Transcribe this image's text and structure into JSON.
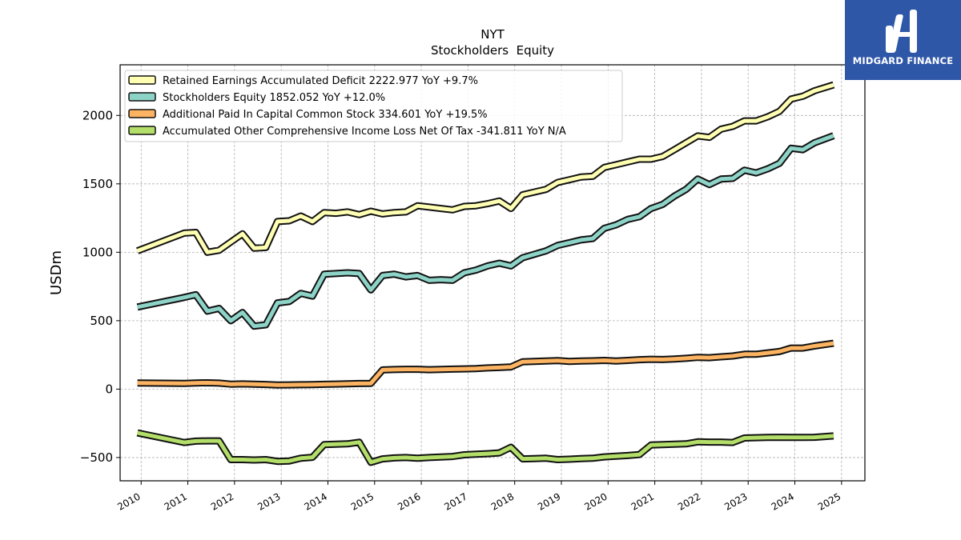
{
  "brand": {
    "name": "MIDGARD FINANCE",
    "bg_color": "#2f57a8"
  },
  "chart_data": {
    "type": "line",
    "title": "NYT",
    "subtitle": "Stockholders  Equity",
    "xlabel": "",
    "ylabel": "USDm",
    "xlim": [
      2009.55,
      2025.5
    ],
    "ylim": [
      -670,
      2370
    ],
    "x_ticks": [
      "2010",
      "2011",
      "2012",
      "2013",
      "2014",
      "2015",
      "2016",
      "2017",
      "2018",
      "2019",
      "2020",
      "2021",
      "2022",
      "2023",
      "2024",
      "2025"
    ],
    "y_ticks": [
      -500,
      0,
      500,
      1000,
      1500,
      2000
    ],
    "grid": true,
    "legend_position": "top-left",
    "series": [
      {
        "name": "Retained Earnings Accumulated Deficit",
        "legend": "Retained Earnings Accumulated Deficit  2222.977 YoY +9.7%",
        "color": "#ffffb3",
        "points": [
          [
            2009.92,
            1010
          ],
          [
            2010.92,
            1140
          ],
          [
            2011.17,
            1145
          ],
          [
            2011.42,
            1000
          ],
          [
            2011.67,
            1015
          ],
          [
            2011.92,
            1075
          ],
          [
            2012.17,
            1135
          ],
          [
            2012.42,
            1030
          ],
          [
            2012.67,
            1035
          ],
          [
            2012.92,
            1225
          ],
          [
            2013.17,
            1230
          ],
          [
            2013.42,
            1265
          ],
          [
            2013.67,
            1225
          ],
          [
            2013.92,
            1290
          ],
          [
            2014.17,
            1285
          ],
          [
            2014.42,
            1295
          ],
          [
            2014.67,
            1275
          ],
          [
            2014.92,
            1300
          ],
          [
            2015.17,
            1280
          ],
          [
            2015.42,
            1290
          ],
          [
            2015.67,
            1295
          ],
          [
            2015.92,
            1340
          ],
          [
            2016.17,
            1330
          ],
          [
            2016.42,
            1320
          ],
          [
            2016.67,
            1310
          ],
          [
            2016.92,
            1335
          ],
          [
            2017.17,
            1340
          ],
          [
            2017.42,
            1355
          ],
          [
            2017.67,
            1375
          ],
          [
            2017.92,
            1320
          ],
          [
            2018.17,
            1420
          ],
          [
            2018.42,
            1440
          ],
          [
            2018.67,
            1460
          ],
          [
            2018.92,
            1510
          ],
          [
            2019.17,
            1530
          ],
          [
            2019.42,
            1550
          ],
          [
            2019.67,
            1555
          ],
          [
            2019.92,
            1620
          ],
          [
            2020.17,
            1640
          ],
          [
            2020.42,
            1660
          ],
          [
            2020.67,
            1680
          ],
          [
            2020.92,
            1680
          ],
          [
            2021.17,
            1700
          ],
          [
            2021.42,
            1750
          ],
          [
            2021.67,
            1800
          ],
          [
            2021.92,
            1850
          ],
          [
            2022.17,
            1840
          ],
          [
            2022.42,
            1900
          ],
          [
            2022.67,
            1920
          ],
          [
            2022.92,
            1960
          ],
          [
            2023.17,
            1960
          ],
          [
            2023.42,
            1990
          ],
          [
            2023.67,
            2030
          ],
          [
            2023.92,
            2120
          ],
          [
            2024.17,
            2140
          ],
          [
            2024.42,
            2180
          ],
          [
            2024.83,
            2223
          ]
        ]
      },
      {
        "name": "Stockholders Equity",
        "legend": "Stockholders Equity  1852.052 YoY +12.0%",
        "color": "#8dd3c7",
        "points": [
          [
            2009.92,
            600
          ],
          [
            2010.92,
            670
          ],
          [
            2011.17,
            690
          ],
          [
            2011.42,
            570
          ],
          [
            2011.67,
            590
          ],
          [
            2011.92,
            500
          ],
          [
            2012.17,
            560
          ],
          [
            2012.42,
            460
          ],
          [
            2012.67,
            470
          ],
          [
            2012.92,
            630
          ],
          [
            2013.17,
            640
          ],
          [
            2013.42,
            700
          ],
          [
            2013.67,
            680
          ],
          [
            2013.92,
            840
          ],
          [
            2014.17,
            845
          ],
          [
            2014.42,
            850
          ],
          [
            2014.67,
            845
          ],
          [
            2014.92,
            725
          ],
          [
            2015.17,
            830
          ],
          [
            2015.42,
            840
          ],
          [
            2015.67,
            820
          ],
          [
            2015.92,
            830
          ],
          [
            2016.17,
            795
          ],
          [
            2016.42,
            800
          ],
          [
            2016.67,
            795
          ],
          [
            2016.92,
            850
          ],
          [
            2017.17,
            870
          ],
          [
            2017.42,
            900
          ],
          [
            2017.67,
            920
          ],
          [
            2017.92,
            900
          ],
          [
            2018.17,
            960
          ],
          [
            2018.42,
            985
          ],
          [
            2018.67,
            1010
          ],
          [
            2018.92,
            1050
          ],
          [
            2019.17,
            1070
          ],
          [
            2019.42,
            1090
          ],
          [
            2019.67,
            1100
          ],
          [
            2019.92,
            1175
          ],
          [
            2020.17,
            1200
          ],
          [
            2020.42,
            1240
          ],
          [
            2020.67,
            1260
          ],
          [
            2020.92,
            1320
          ],
          [
            2021.17,
            1350
          ],
          [
            2021.42,
            1410
          ],
          [
            2021.67,
            1460
          ],
          [
            2021.92,
            1535
          ],
          [
            2022.17,
            1495
          ],
          [
            2022.42,
            1535
          ],
          [
            2022.67,
            1540
          ],
          [
            2022.92,
            1600
          ],
          [
            2023.17,
            1580
          ],
          [
            2023.42,
            1610
          ],
          [
            2023.67,
            1650
          ],
          [
            2023.92,
            1760
          ],
          [
            2024.17,
            1750
          ],
          [
            2024.42,
            1800
          ],
          [
            2024.83,
            1852
          ]
        ]
      },
      {
        "name": "Additional Paid In Capital Common Stock",
        "legend": "Additional Paid In Capital Common Stock  334.601 YoY +19.5%",
        "color": "#fdb462",
        "points": [
          [
            2009.92,
            45
          ],
          [
            2010.92,
            42
          ],
          [
            2011.17,
            45
          ],
          [
            2011.42,
            46
          ],
          [
            2011.67,
            44
          ],
          [
            2011.92,
            36
          ],
          [
            2012.17,
            38
          ],
          [
            2012.42,
            36
          ],
          [
            2012.67,
            34
          ],
          [
            2012.92,
            30
          ],
          [
            2013.17,
            31
          ],
          [
            2013.42,
            32
          ],
          [
            2013.67,
            33
          ],
          [
            2013.92,
            35
          ],
          [
            2014.17,
            37
          ],
          [
            2014.42,
            39
          ],
          [
            2014.67,
            41
          ],
          [
            2014.92,
            42
          ],
          [
            2015.17,
            140
          ],
          [
            2015.42,
            143
          ],
          [
            2015.67,
            145
          ],
          [
            2015.92,
            145
          ],
          [
            2016.17,
            142
          ],
          [
            2016.42,
            144
          ],
          [
            2016.67,
            146
          ],
          [
            2016.92,
            148
          ],
          [
            2017.17,
            150
          ],
          [
            2017.42,
            155
          ],
          [
            2017.67,
            158
          ],
          [
            2017.92,
            162
          ],
          [
            2018.17,
            200
          ],
          [
            2018.42,
            203
          ],
          [
            2018.67,
            206
          ],
          [
            2018.92,
            208
          ],
          [
            2019.17,
            203
          ],
          [
            2019.42,
            205
          ],
          [
            2019.67,
            207
          ],
          [
            2019.92,
            210
          ],
          [
            2020.17,
            206
          ],
          [
            2020.42,
            210
          ],
          [
            2020.67,
            215
          ],
          [
            2020.92,
            218
          ],
          [
            2021.17,
            216
          ],
          [
            2021.42,
            220
          ],
          [
            2021.67,
            225
          ],
          [
            2021.92,
            232
          ],
          [
            2022.17,
            230
          ],
          [
            2022.42,
            236
          ],
          [
            2022.67,
            242
          ],
          [
            2022.92,
            255
          ],
          [
            2023.17,
            255
          ],
          [
            2023.42,
            265
          ],
          [
            2023.67,
            275
          ],
          [
            2023.92,
            300
          ],
          [
            2024.17,
            300
          ],
          [
            2024.42,
            315
          ],
          [
            2024.83,
            335
          ]
        ]
      },
      {
        "name": "Accumulated Other Comprehensive Income Loss Net Of Tax",
        "legend": "Accumulated Other Comprehensive Income Loss Net Of Tax  -341.811 YoY N/A",
        "color": "#b3de69",
        "points": [
          [
            2009.92,
            -320
          ],
          [
            2010.92,
            -390
          ],
          [
            2011.17,
            -380
          ],
          [
            2011.42,
            -378
          ],
          [
            2011.67,
            -378
          ],
          [
            2011.92,
            -515
          ],
          [
            2012.17,
            -515
          ],
          [
            2012.42,
            -518
          ],
          [
            2012.67,
            -515
          ],
          [
            2012.92,
            -528
          ],
          [
            2013.17,
            -525
          ],
          [
            2013.42,
            -505
          ],
          [
            2013.67,
            -498
          ],
          [
            2013.92,
            -405
          ],
          [
            2014.17,
            -403
          ],
          [
            2014.42,
            -400
          ],
          [
            2014.67,
            -388
          ],
          [
            2014.92,
            -535
          ],
          [
            2015.17,
            -510
          ],
          [
            2015.42,
            -503
          ],
          [
            2015.67,
            -500
          ],
          [
            2015.92,
            -505
          ],
          [
            2016.17,
            -500
          ],
          [
            2016.42,
            -496
          ],
          [
            2016.67,
            -492
          ],
          [
            2016.92,
            -480
          ],
          [
            2017.17,
            -476
          ],
          [
            2017.42,
            -472
          ],
          [
            2017.67,
            -466
          ],
          [
            2017.92,
            -425
          ],
          [
            2018.17,
            -510
          ],
          [
            2018.42,
            -508
          ],
          [
            2018.67,
            -505
          ],
          [
            2018.92,
            -515
          ],
          [
            2019.17,
            -512
          ],
          [
            2019.42,
            -508
          ],
          [
            2019.67,
            -505
          ],
          [
            2019.92,
            -495
          ],
          [
            2020.17,
            -490
          ],
          [
            2020.42,
            -485
          ],
          [
            2020.67,
            -478
          ],
          [
            2020.92,
            -408
          ],
          [
            2021.17,
            -405
          ],
          [
            2021.42,
            -403
          ],
          [
            2021.67,
            -400
          ],
          [
            2021.92,
            -385
          ],
          [
            2022.17,
            -387
          ],
          [
            2022.42,
            -387
          ],
          [
            2022.67,
            -390
          ],
          [
            2022.92,
            -357
          ],
          [
            2023.17,
            -355
          ],
          [
            2023.42,
            -353
          ],
          [
            2023.67,
            -352
          ],
          [
            2023.92,
            -353
          ],
          [
            2024.17,
            -353
          ],
          [
            2024.42,
            -352
          ],
          [
            2024.83,
            -342
          ]
        ]
      }
    ]
  }
}
